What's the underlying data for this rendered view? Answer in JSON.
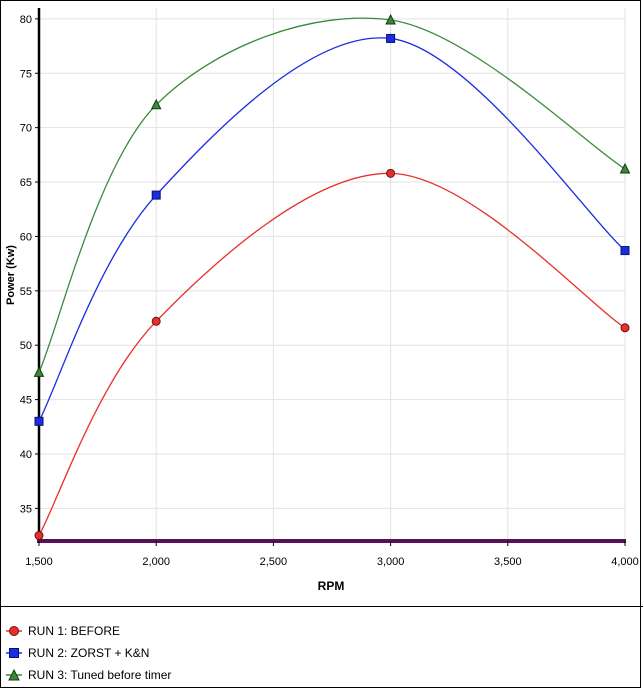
{
  "chart_data": {
    "type": "line",
    "title": "",
    "xlabel": "RPM",
    "ylabel": "Power (Kw)",
    "xlim": [
      1500,
      4000
    ],
    "ylim": [
      32,
      81
    ],
    "x_ticks": [
      1500,
      2000,
      2500,
      3000,
      3500,
      4000
    ],
    "x_tick_labels": [
      "1,500",
      "2,000",
      "2,500",
      "3,000",
      "3,500",
      "4,000"
    ],
    "y_ticks": [
      35,
      40,
      45,
      50,
      55,
      60,
      65,
      70,
      75,
      80
    ],
    "y_tick_labels": [
      "35",
      "40",
      "45",
      "50",
      "55",
      "60",
      "65",
      "70",
      "75",
      "80"
    ],
    "grid": true,
    "legend_position": "bottom",
    "x": [
      1500,
      2000,
      3000,
      4000
    ],
    "series": [
      {
        "name": "RUN 1: BEFORE",
        "color": "#e8302a",
        "marker": "circle",
        "values": [
          32.5,
          52.2,
          65.8,
          51.6
        ]
      },
      {
        "name": "RUN 2: ZORST + K&N",
        "color": "#1a2ee0",
        "marker": "square",
        "values": [
          43.0,
          63.8,
          78.2,
          58.7
        ]
      },
      {
        "name": "RUN 3: Tuned before timer",
        "color": "#3a8a3a",
        "marker": "triangle",
        "values": [
          47.5,
          72.1,
          79.9,
          66.2
        ]
      }
    ],
    "baseline": {
      "color": "#5a0f5a"
    }
  }
}
